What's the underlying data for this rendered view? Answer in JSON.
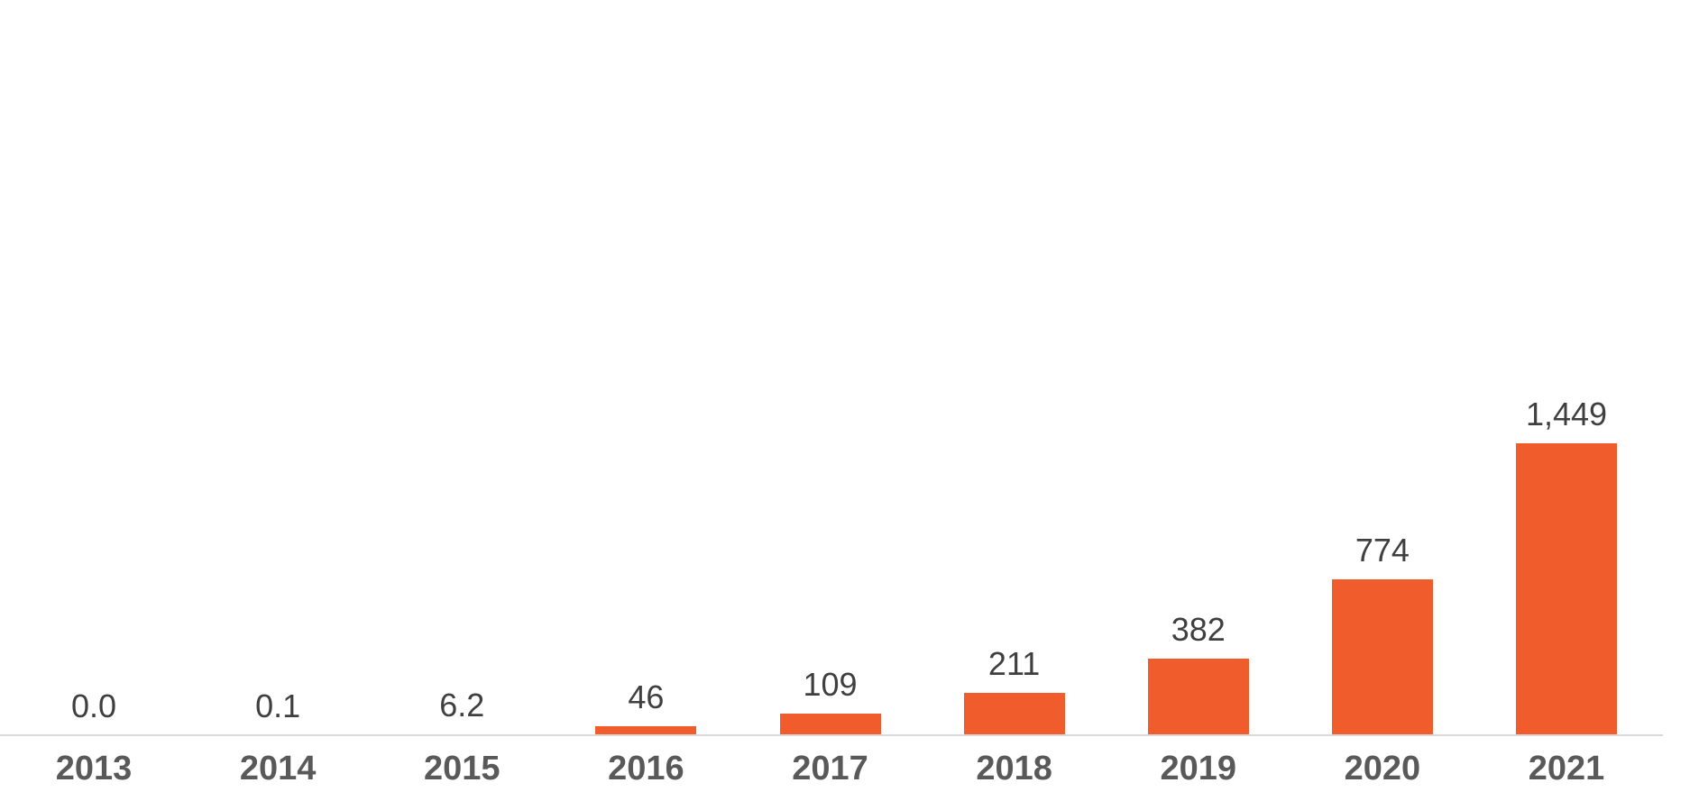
{
  "chart_data": {
    "type": "bar",
    "title": "",
    "xlabel": "",
    "ylabel": "",
    "categories": [
      "2013",
      "2014",
      "2015",
      "2016",
      "2017",
      "2018",
      "2019",
      "2020",
      "2021"
    ],
    "values": [
      0.0,
      0.1,
      6.2,
      46,
      109,
      211,
      382,
      774,
      1449
    ],
    "data_labels": [
      "0.0",
      "0.1",
      "6.2",
      "46",
      "109",
      "211",
      "382",
      "774",
      "1,449"
    ],
    "ylim": [
      0,
      3650
    ],
    "grid": false,
    "legend": false,
    "bar_color": "#F15C2C",
    "axis_line_color": "#D9D9D9",
    "data_label_color": "#3F3F3F",
    "tick_label_color": "#595959",
    "background_color": "#FFFFFF"
  }
}
